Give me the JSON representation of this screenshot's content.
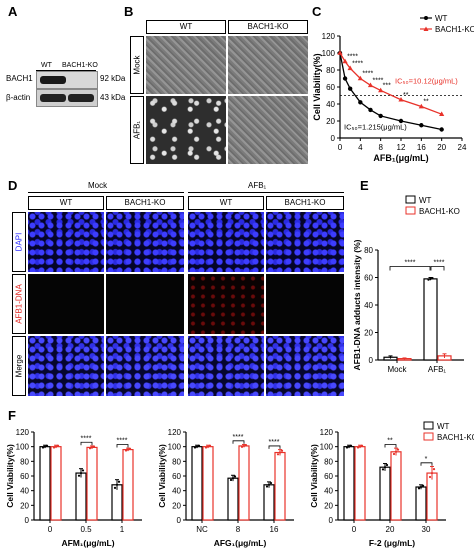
{
  "panels": {
    "A": "A",
    "B": "B",
    "C": "C",
    "D": "D",
    "E": "E",
    "F": "F"
  },
  "panelA": {
    "col_labels": [
      "WT",
      "BACH1-KO"
    ],
    "rows": [
      {
        "label": "BACH1",
        "size": "92 kDa"
      },
      {
        "label": "β-actin",
        "size": "43 kDa"
      }
    ]
  },
  "panelB": {
    "col_headers": [
      "WT",
      "BACH1-KO"
    ],
    "row_labels": [
      "Mock",
      "AFB₁"
    ]
  },
  "panelD": {
    "group_headers": [
      "Mock",
      "AFB₁"
    ],
    "col_headers": [
      "WT",
      "BACH1-KO",
      "WT",
      "BACH1-KO"
    ],
    "row_labels": [
      "DAPI",
      "AFB1-DNA",
      "Merge"
    ],
    "row_label_colors": [
      "#2b2bff",
      "#e0201b",
      "#000000"
    ]
  },
  "legend": {
    "wt": "WT",
    "ko": "BACH1-KO"
  },
  "colors": {
    "wt": "#000000",
    "ko": "#e8322a"
  },
  "chart_data": [
    {
      "id": "C",
      "type": "line",
      "xlabel": "AFB₁(μg/mL)",
      "ylabel": "Cell Viability(%)",
      "xlim": [
        0,
        24
      ],
      "ylim": [
        0,
        120
      ],
      "xticks": [
        0,
        4,
        8,
        12,
        16,
        20,
        24
      ],
      "yticks": [
        0,
        20,
        40,
        60,
        80,
        100,
        120
      ],
      "reference_line": 50,
      "annotations": [
        "IC₅₀=10.12(μg/mL)",
        "IC₅₀=1.215(μg/mL)"
      ],
      "sig_marks": [
        "****",
        "****",
        "****",
        "****",
        "***",
        "**",
        "**"
      ],
      "series": [
        {
          "name": "WT",
          "x": [
            0,
            1,
            2,
            4,
            6,
            8,
            12,
            16,
            20
          ],
          "y": [
            100,
            70,
            58,
            42,
            33,
            26,
            20,
            15,
            10
          ]
        },
        {
          "name": "BACH1-KO",
          "x": [
            0,
            1,
            2,
            4,
            6,
            8,
            12,
            16,
            20
          ],
          "y": [
            100,
            90,
            82,
            70,
            62,
            56,
            45,
            37,
            28
          ]
        }
      ]
    },
    {
      "id": "E",
      "type": "bar",
      "ylabel": "AFB1-DNA adducts intensity (%)",
      "ylim": [
        0,
        80
      ],
      "yticks": [
        0,
        20,
        40,
        60,
        80
      ],
      "categories": [
        "Mock",
        "AFB₁"
      ],
      "series": [
        {
          "name": "WT",
          "values": [
            2,
            59
          ],
          "errors": [
            1,
            1
          ]
        },
        {
          "name": "BACH1-KO",
          "values": [
            1,
            3
          ],
          "errors": [
            0.5,
            1.5
          ]
        }
      ],
      "sig_marks": [
        "****",
        "****"
      ]
    },
    {
      "id": "F1",
      "type": "bar",
      "ylabel": "Cell Viability(%)",
      "xlabel": "AFM₁(μg/mL)",
      "ylim": [
        0,
        120
      ],
      "yticks": [
        0,
        20,
        40,
        60,
        80,
        100,
        120
      ],
      "categories": [
        "0",
        "0.5",
        "1"
      ],
      "series": [
        {
          "name": "WT",
          "values": [
            100,
            64,
            48
          ],
          "errors": [
            2,
            6,
            7
          ]
        },
        {
          "name": "BACH1-KO",
          "values": [
            100,
            99,
            96
          ],
          "errors": [
            2,
            2,
            2
          ]
        }
      ],
      "sig_marks": [
        "****",
        "****"
      ]
    },
    {
      "id": "F2",
      "type": "bar",
      "ylabel": "Cell Viability(%)",
      "xlabel": "AFG₁(μg/mL)",
      "ylim": [
        0,
        120
      ],
      "yticks": [
        0,
        20,
        40,
        60,
        80,
        100,
        120
      ],
      "categories": [
        "NC",
        "8",
        "16"
      ],
      "series": [
        {
          "name": "WT",
          "values": [
            100,
            57,
            48
          ],
          "errors": [
            2,
            4,
            4
          ]
        },
        {
          "name": "BACH1-KO",
          "values": [
            100,
            101,
            92
          ],
          "errors": [
            2,
            2,
            4
          ]
        }
      ],
      "sig_marks": [
        "****",
        "****"
      ]
    },
    {
      "id": "F3",
      "type": "bar",
      "ylabel": "Cell Viability(%)",
      "xlabel": "F-2 (μg/mL)",
      "ylim": [
        0,
        120
      ],
      "yticks": [
        0,
        20,
        40,
        60,
        80,
        100,
        120
      ],
      "categories": [
        "0",
        "20",
        "30"
      ],
      "series": [
        {
          "name": "WT",
          "values": [
            100,
            72,
            45
          ],
          "errors": [
            2,
            5,
            3
          ]
        },
        {
          "name": "BACH1-KO",
          "values": [
            100,
            93,
            64
          ],
          "errors": [
            2,
            5,
            9
          ]
        }
      ],
      "sig_marks": [
        "**",
        "*"
      ]
    }
  ]
}
